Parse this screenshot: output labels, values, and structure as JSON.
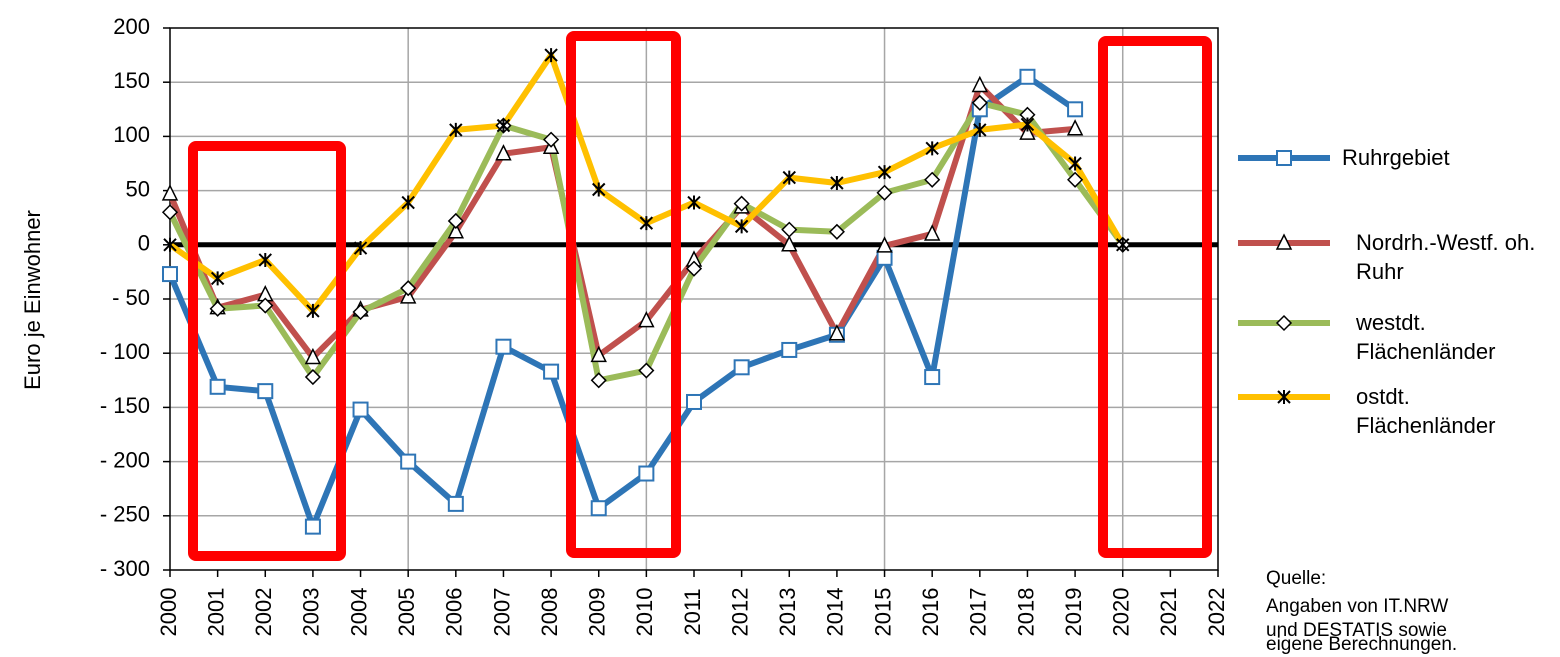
{
  "chart_data": {
    "type": "line",
    "y_label": "Euro je Einwohner",
    "x": [
      2000,
      2001,
      2002,
      2003,
      2004,
      2005,
      2006,
      2007,
      2008,
      2009,
      2010,
      2011,
      2012,
      2013,
      2014,
      2015,
      2016,
      2017,
      2018,
      2019,
      2020
    ],
    "series": [
      {
        "name": "Ruhrgebiet",
        "color": "#2e75b6",
        "marker": "square",
        "values": [
          -27,
          -131,
          -135,
          -260,
          -152,
          -200,
          -239,
          -94,
          -117,
          -243,
          -211,
          -145,
          -113,
          -97,
          -83,
          -12,
          -122,
          125,
          155,
          125,
          null
        ]
      },
      {
        "name": "Nordrh.-Westf. oh. Ruhr",
        "color": "#c0504d",
        "marker": "triangle",
        "values": [
          47,
          -58,
          -46,
          -104,
          -60,
          -48,
          12,
          84,
          90,
          -102,
          -70,
          -14,
          35,
          0,
          -82,
          -1,
          10,
          147,
          103,
          107,
          null
        ]
      },
      {
        "name": "westdt. Flächenländer",
        "color": "#9bbb59",
        "marker": "diamond",
        "values": [
          30,
          -59,
          -56,
          -122,
          -62,
          -40,
          22,
          110,
          97,
          -125,
          -116,
          -22,
          38,
          14,
          12,
          48,
          60,
          131,
          120,
          60,
          0
        ]
      },
      {
        "name": "ostdt. Flächenländer",
        "color": "#ffc000",
        "marker": "asterisk",
        "values": [
          0,
          -31,
          -14,
          -61,
          -3,
          39,
          106,
          110,
          175,
          51,
          20,
          39,
          17,
          62,
          57,
          67,
          89,
          106,
          111,
          75,
          0
        ]
      }
    ],
    "xlim": [
      2000,
      2022
    ],
    "xticks": [
      2000,
      2001,
      2002,
      2003,
      2004,
      2005,
      2006,
      2007,
      2008,
      2009,
      2010,
      2011,
      2012,
      2013,
      2014,
      2015,
      2016,
      2017,
      2018,
      2019,
      2020,
      2021,
      2022
    ],
    "ylim": [
      -300,
      200
    ],
    "yticks": [
      {
        "value": -300,
        "label": "- 300"
      },
      {
        "value": -250,
        "label": "- 250"
      },
      {
        "value": -200,
        "label": "- 200"
      },
      {
        "value": -150,
        "label": "- 150"
      },
      {
        "value": -100,
        "label": "- 100"
      },
      {
        "value": -50,
        "label": "- 50"
      },
      0,
      50,
      100,
      150,
      200
    ],
    "grid": true,
    "source": [
      "Quelle:",
      "Angaben von IT.NRW",
      "und DESTATIS sowie",
      "eigene Berechnungen."
    ]
  }
}
